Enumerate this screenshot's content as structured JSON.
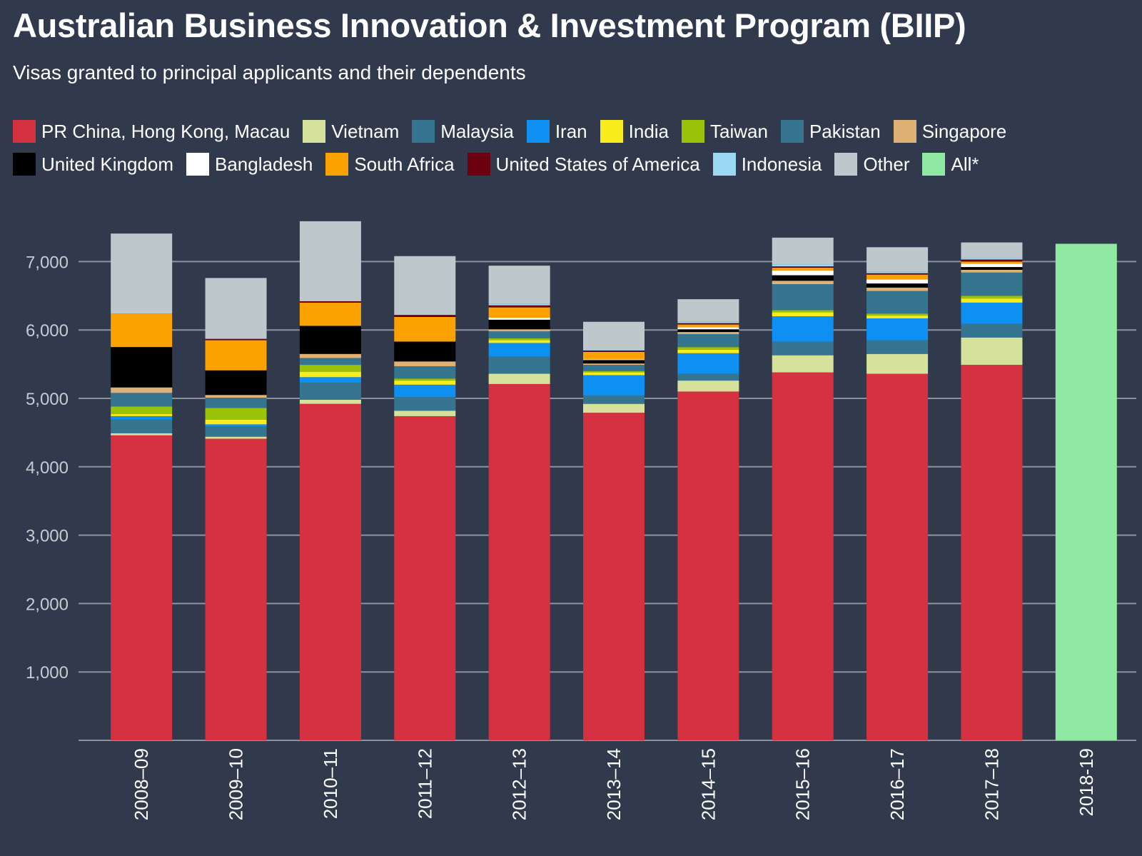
{
  "title": "Australian Business Innovation & Investment Program (BIIP)",
  "subtitle": "Visas granted to principal applicants and their dependents",
  "legend_rows": [
    [
      {
        "name": "PR China, Hong Kong, Macau",
        "color": "#d63141"
      },
      {
        "name": "Vietnam",
        "color": "#d6e29c"
      },
      {
        "name": "Malaysia",
        "color": "#36758f"
      },
      {
        "name": "Iran",
        "color": "#0e8ff2"
      },
      {
        "name": "India",
        "color": "#f8ec1c"
      },
      {
        "name": "Taiwan",
        "color": "#9ac208"
      },
      {
        "name": "Pakistan",
        "color": "#36758f"
      },
      {
        "name": "Singapore",
        "color": "#e0b175"
      }
    ],
    [
      {
        "name": "United Kingdom",
        "color": "#000000"
      },
      {
        "name": "Bangladesh",
        "color": "#ffffff"
      },
      {
        "name": "South Africa",
        "color": "#fba100"
      },
      {
        "name": "United States of America",
        "color": "#6b0010"
      },
      {
        "name": "Indonesia",
        "color": "#9ad8f4"
      },
      {
        "name": "Other",
        "color": "#bdc7cc"
      },
      {
        "name": "All*",
        "color": "#8fe9a2"
      }
    ]
  ],
  "chart_data": {
    "type": "bar",
    "stacked": true,
    "categories": [
      "2008–09",
      "2009–10",
      "2010–11",
      "2011–12",
      "2012–13",
      "2013–14",
      "2014–15",
      "2015–16",
      "2016–17",
      "2017–18",
      "2018-19"
    ],
    "y_ticks": [
      "1,000",
      "2,000",
      "3,000",
      "4,000",
      "5,000",
      "6,000",
      "7,000"
    ],
    "ylim": [
      0,
      7800
    ],
    "grid": true,
    "legend_position": "top",
    "series": [
      {
        "name": "PR China, Hong Kong, Macau",
        "color": "#d63141",
        "values": [
          4460,
          4410,
          4920,
          4740,
          5210,
          4790,
          5100,
          5380,
          5360,
          5490,
          0
        ]
      },
      {
        "name": "Vietnam",
        "color": "#d6e29c",
        "values": [
          30,
          30,
          60,
          80,
          150,
          130,
          160,
          250,
          290,
          400,
          0
        ]
      },
      {
        "name": "Malaysia",
        "color": "#36758f",
        "values": [
          200,
          150,
          250,
          200,
          250,
          120,
          100,
          200,
          200,
          200,
          0
        ]
      },
      {
        "name": "Iran",
        "color": "#0e8ff2",
        "values": [
          50,
          30,
          80,
          180,
          200,
          300,
          300,
          370,
          320,
          310,
          0
        ]
      },
      {
        "name": "India",
        "color": "#f8ec1c",
        "values": [
          30,
          70,
          80,
          60,
          40,
          40,
          50,
          60,
          40,
          60,
          0
        ]
      },
      {
        "name": "Taiwan",
        "color": "#9ac208",
        "values": [
          110,
          170,
          100,
          30,
          30,
          20,
          40,
          30,
          30,
          40,
          0
        ]
      },
      {
        "name": "Pakistan",
        "color": "#36758f",
        "values": [
          200,
          150,
          100,
          180,
          100,
          90,
          190,
          380,
          330,
          340,
          0
        ]
      },
      {
        "name": "Singapore",
        "color": "#e0b175",
        "values": [
          80,
          40,
          60,
          70,
          30,
          20,
          30,
          50,
          50,
          40,
          0
        ]
      },
      {
        "name": "United Kingdom",
        "color": "#000000",
        "values": [
          590,
          360,
          410,
          290,
          140,
          50,
          40,
          80,
          60,
          40,
          0
        ]
      },
      {
        "name": "Bangladesh",
        "color": "#ffffff",
        "values": [
          0,
          0,
          0,
          0,
          30,
          10,
          30,
          70,
          60,
          50,
          0
        ]
      },
      {
        "name": "South Africa",
        "color": "#fba100",
        "values": [
          490,
          440,
          340,
          360,
          150,
          110,
          40,
          40,
          70,
          30,
          0
        ]
      },
      {
        "name": "United States of America",
        "color": "#6b0010",
        "values": [
          0,
          20,
          20,
          30,
          30,
          20,
          20,
          20,
          20,
          30,
          0
        ]
      },
      {
        "name": "Indonesia",
        "color": "#9ad8f4",
        "values": [
          0,
          0,
          0,
          0,
          20,
          10,
          20,
          30,
          20,
          20,
          0
        ]
      },
      {
        "name": "Other",
        "color": "#bdc7cc",
        "values": [
          1170,
          890,
          1170,
          860,
          560,
          410,
          330,
          390,
          360,
          230,
          0
        ]
      },
      {
        "name": "All*",
        "color": "#8fe9a2",
        "values": [
          0,
          0,
          0,
          0,
          0,
          0,
          0,
          0,
          0,
          0,
          7260
        ]
      }
    ]
  }
}
